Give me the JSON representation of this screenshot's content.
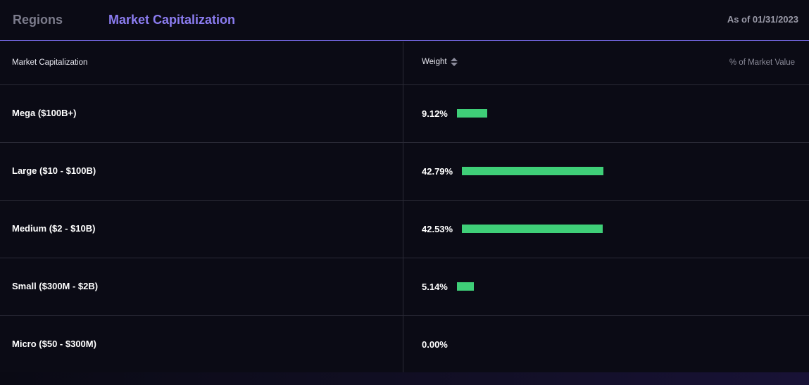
{
  "tabs": {
    "regions": "Regions",
    "market_cap": "Market Capitalization"
  },
  "as_of": "As of 01/31/2023",
  "table": {
    "col_label_header": "Market Capitalization",
    "col_weight_header": "Weight",
    "unit_label": "% of Market Value",
    "rows": [
      {
        "label": "Mega ($100B+)",
        "value_text": "9.12%",
        "value": 9.12
      },
      {
        "label": "Large ($10 - $100B)",
        "value_text": "42.79%",
        "value": 42.79
      },
      {
        "label": "Medium ($2 - $10B)",
        "value_text": "42.53%",
        "value": 42.53
      },
      {
        "label": "Small ($300M - $2B)",
        "value_text": "5.14%",
        "value": 5.14
      },
      {
        "label": "Micro ($50 - $300M)",
        "value_text": "0.00%",
        "value": 0.0
      }
    ]
  },
  "colors": {
    "accent": "#8b7cf0",
    "bar": "#3fcf78"
  }
}
